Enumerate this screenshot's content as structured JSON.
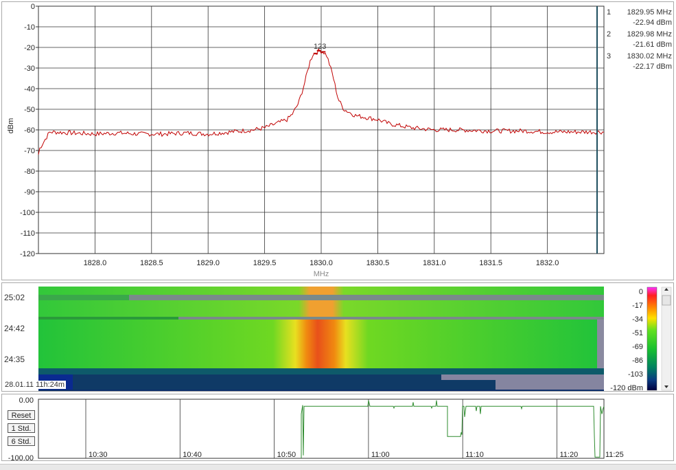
{
  "spectrum": {
    "y_label": "dBm",
    "x_label": "MHz",
    "y_ticks": [
      "0",
      "-10",
      "-20",
      "-30",
      "-40",
      "-50",
      "-60",
      "-70",
      "-80",
      "-90",
      "-100",
      "-110",
      "-120"
    ],
    "x_ticks": [
      "1828.0",
      "1828.5",
      "1829.0",
      "1829.5",
      "1830.0",
      "1830.5",
      "1831.0",
      "1831.5",
      "1832.0"
    ],
    "peak_label": "123",
    "trace_color": "#c00000",
    "cursor_color": "#1f4f5f",
    "markers": [
      {
        "num": "1",
        "freq": "1829.95 MHz",
        "level": "-22.94 dBm"
      },
      {
        "num": "2",
        "freq": "1829.98 MHz",
        "level": "-21.61 dBm"
      },
      {
        "num": "3",
        "freq": "1830.02 MHz",
        "level": "-22.17 dBm"
      }
    ]
  },
  "chart_data": {
    "type": "line",
    "xlabel": "MHz",
    "ylabel": "dBm",
    "xlim": [
      1827.5,
      1832.5
    ],
    "ylim": [
      -120,
      0
    ],
    "series": [
      {
        "x": [
          1827.5,
          1827.6,
          1827.8,
          1828.0,
          1828.2,
          1828.4,
          1828.6,
          1828.8,
          1829.0,
          1829.2,
          1829.4,
          1829.5,
          1829.6,
          1829.7,
          1829.75,
          1829.8,
          1829.85,
          1829.9,
          1829.93,
          1829.95,
          1829.98,
          1830.0,
          1830.02,
          1830.05,
          1830.1,
          1830.15,
          1830.2,
          1830.3,
          1830.4,
          1830.5,
          1830.6,
          1830.8,
          1831.0,
          1831.2,
          1831.5,
          1831.8,
          1832.0,
          1832.2,
          1832.5
        ],
        "y": [
          -70,
          -61,
          -61.5,
          -62,
          -61.5,
          -62,
          -62,
          -61.5,
          -62,
          -61,
          -60,
          -59,
          -57,
          -55,
          -52,
          -47,
          -38,
          -27,
          -23,
          -22.9,
          -21.6,
          -21.8,
          -22.2,
          -24,
          -33,
          -45,
          -50,
          -53,
          -54,
          -55,
          -57,
          -59,
          -60,
          -60,
          -60.5,
          -60.5,
          -61,
          -61,
          -61
        ]
      }
    ]
  },
  "waterfall": {
    "times": [
      "25:02",
      "24:42",
      "24:35"
    ],
    "start_label": "28.01.11 11h:24m",
    "colorbar_labels": [
      "0",
      "-17",
      "-34",
      "-51",
      "-69",
      "-86",
      "-103",
      "-120 dBm"
    ]
  },
  "timeline": {
    "y_top": "0.00",
    "y_bottom": "-100.00",
    "buttons": [
      "Reset",
      "1 Std.",
      "6 Std."
    ],
    "x_ticks": [
      "10:30",
      "10:40",
      "10:50",
      "11:00",
      "11:10",
      "11:20",
      "11:25"
    ],
    "trace_color": "#2e8b2e"
  }
}
